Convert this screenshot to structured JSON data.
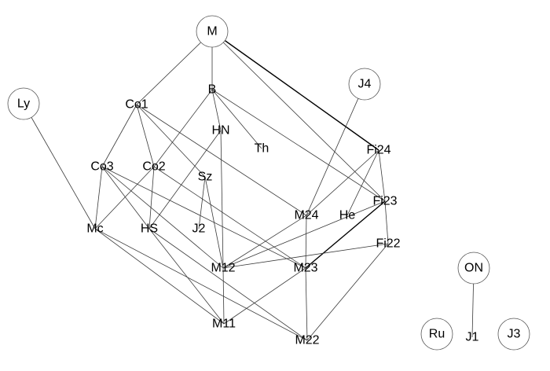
{
  "graph": {
    "nodes": [
      {
        "id": "M",
        "label": "M",
        "circled": true
      },
      {
        "id": "B",
        "label": "B",
        "circled": false
      },
      {
        "id": "Co1",
        "label": "Co1",
        "circled": false
      },
      {
        "id": "Ly",
        "label": "Ly",
        "circled": true
      },
      {
        "id": "J4",
        "label": "J4",
        "circled": true
      },
      {
        "id": "HN",
        "label": "HN",
        "circled": false
      },
      {
        "id": "Th",
        "label": "Th",
        "circled": false
      },
      {
        "id": "Fi24",
        "label": "Fi24",
        "circled": false
      },
      {
        "id": "Co3",
        "label": "Co3",
        "circled": false
      },
      {
        "id": "Co2",
        "label": "Co2",
        "circled": false
      },
      {
        "id": "Sz",
        "label": "Sz",
        "circled": false
      },
      {
        "id": "Fi23",
        "label": "Fi23",
        "circled": false
      },
      {
        "id": "He",
        "label": "He",
        "circled": false
      },
      {
        "id": "M24",
        "label": "M24",
        "circled": false
      },
      {
        "id": "Mc",
        "label": "Mc",
        "circled": false
      },
      {
        "id": "HS",
        "label": "HS",
        "circled": false
      },
      {
        "id": "J2",
        "label": "J2",
        "circled": false
      },
      {
        "id": "Fi22",
        "label": "Fi22",
        "circled": false
      },
      {
        "id": "M12",
        "label": "M12",
        "circled": false
      },
      {
        "id": "M23",
        "label": "M23",
        "circled": false
      },
      {
        "id": "ON",
        "label": "ON",
        "circled": true
      },
      {
        "id": "M11",
        "label": "M11",
        "circled": false
      },
      {
        "id": "M22",
        "label": "M22",
        "circled": false
      },
      {
        "id": "Ru",
        "label": "Ru",
        "circled": true
      },
      {
        "id": "J1",
        "label": "J1",
        "circled": false
      },
      {
        "id": "J3",
        "label": "J3",
        "circled": true
      }
    ],
    "edges": [
      {
        "from": "M",
        "to": "Co1",
        "bold": false
      },
      {
        "from": "M",
        "to": "B",
        "bold": false
      },
      {
        "from": "M",
        "to": "Fi24",
        "bold": true
      },
      {
        "from": "M",
        "to": "Fi23",
        "bold": false
      },
      {
        "from": "B",
        "to": "HN",
        "bold": false
      },
      {
        "from": "B",
        "to": "Th",
        "bold": false
      },
      {
        "from": "B",
        "to": "Co2",
        "bold": false
      },
      {
        "from": "B",
        "to": "Fi23",
        "bold": false
      },
      {
        "from": "Co1",
        "to": "Co3",
        "bold": false
      },
      {
        "from": "Co1",
        "to": "Co2",
        "bold": false
      },
      {
        "from": "Co1",
        "to": "Sz",
        "bold": false
      },
      {
        "from": "Co1",
        "to": "M24",
        "bold": false
      },
      {
        "from": "Ly",
        "to": "Mc",
        "bold": false
      },
      {
        "from": "J4",
        "to": "M24",
        "bold": false
      },
      {
        "from": "HN",
        "to": "HS",
        "bold": false
      },
      {
        "from": "HN",
        "to": "M12",
        "bold": false
      },
      {
        "from": "Fi24",
        "to": "Fi23",
        "bold": false
      },
      {
        "from": "Fi24",
        "to": "M24",
        "bold": false
      },
      {
        "from": "Fi24",
        "to": "He",
        "bold": false
      },
      {
        "from": "Co3",
        "to": "Mc",
        "bold": false
      },
      {
        "from": "Co3",
        "to": "HS",
        "bold": false
      },
      {
        "from": "Co3",
        "to": "M12",
        "bold": false
      },
      {
        "from": "Co3",
        "to": "M23",
        "bold": false
      },
      {
        "from": "Co2",
        "to": "Mc",
        "bold": false
      },
      {
        "from": "Co2",
        "to": "HS",
        "bold": false
      },
      {
        "from": "Co2",
        "to": "M23",
        "bold": false
      },
      {
        "from": "Sz",
        "to": "J2",
        "bold": false
      },
      {
        "from": "Sz",
        "to": "M12",
        "bold": false
      },
      {
        "from": "Fi23",
        "to": "M12",
        "bold": false
      },
      {
        "from": "Fi23",
        "to": "M23",
        "bold": true
      },
      {
        "from": "Fi23",
        "to": "Fi22",
        "bold": false
      },
      {
        "from": "M24",
        "to": "M12",
        "bold": false
      },
      {
        "from": "M24",
        "to": "M23",
        "bold": false
      },
      {
        "from": "Mc",
        "to": "M11",
        "bold": false
      },
      {
        "from": "Mc",
        "to": "M22",
        "bold": false
      },
      {
        "from": "HS",
        "to": "M11",
        "bold": false
      },
      {
        "from": "HS",
        "to": "M22",
        "bold": false
      },
      {
        "from": "Fi22",
        "to": "M12",
        "bold": false
      },
      {
        "from": "Fi22",
        "to": "M22",
        "bold": false
      },
      {
        "from": "M12",
        "to": "M11",
        "bold": false
      },
      {
        "from": "M23",
        "to": "M11",
        "bold": false
      },
      {
        "from": "M23",
        "to": "M22",
        "bold": false
      },
      {
        "from": "ON",
        "to": "J1",
        "bold": false
      }
    ]
  }
}
